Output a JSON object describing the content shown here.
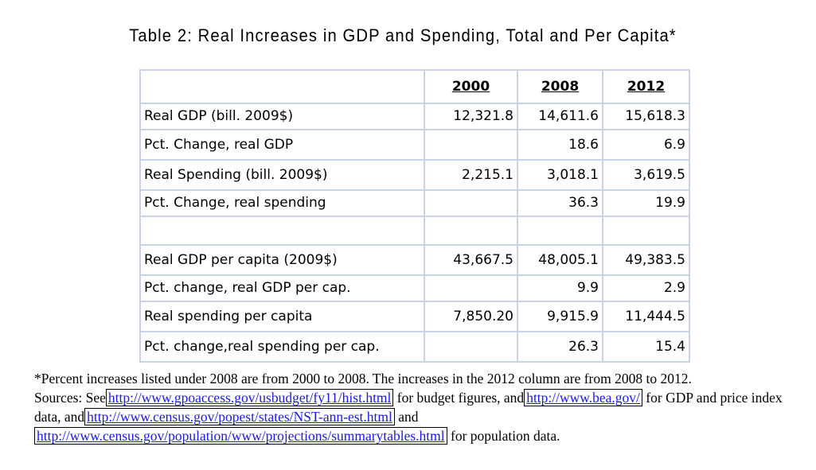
{
  "title": "Table 2: Real Increases in GDP and Spending, Total and Per Capita*",
  "table": {
    "headers": [
      "",
      "2000",
      "2008",
      "2012"
    ],
    "rows": [
      {
        "label": "Real GDP (bill. 2009$)",
        "v2000": "12,321.8",
        "v2008": "14,611.6",
        "v2012": "15,618.3"
      },
      {
        "label": "Pct. Change, real GDP",
        "v2000": "",
        "v2008": "18.6",
        "v2012": "6.9"
      },
      {
        "label": "Real Spending (bill. 2009$)",
        "v2000": "2,215.1",
        "v2008": "3,018.1",
        "v2012": "3,619.5"
      },
      {
        "label": "Pct. Change, real spending",
        "v2000": "",
        "v2008": "36.3",
        "v2012": "19.9"
      },
      {
        "label": "",
        "v2000": "",
        "v2008": "",
        "v2012": ""
      },
      {
        "label": "Real GDP per capita (2009$)",
        "v2000": "43,667.5",
        "v2008": "48,005.1",
        "v2012": "49,383.5"
      },
      {
        "label": "Pct. change, real GDP per cap.",
        "v2000": "",
        "v2008": "9.9",
        "v2012": "2.9"
      },
      {
        "label": "Real spending per capita",
        "v2000": "7,850.20",
        "v2008": "9,915.9",
        "v2012": "11,444.5"
      },
      {
        "label": "Pct. change,real spending per cap.",
        "v2000": "",
        "v2008": "26.3",
        "v2012": "15.4"
      }
    ]
  },
  "footnote": {
    "line1": "*Percent increases listed under 2008 are from 2000 to 2008. The increases in the 2012 column are from 2008 to 2012.",
    "sources_prefix": "Sources: See",
    "link_budget": "http://www.gpoaccess.gov/usbudget/fy11/hist.html",
    "text_budget": "for budget figures, and",
    "link_bea": "http://www.bea.gov/",
    "text_bea": "for GDP and price index data, and",
    "link_census_states": "http://www.census.gov/popest/states/NST-ann-est.html",
    "text_and": "and",
    "link_census_proj": "http://www.census.gov/population/www/projections/summarytables.html",
    "text_population": "for population data."
  }
}
